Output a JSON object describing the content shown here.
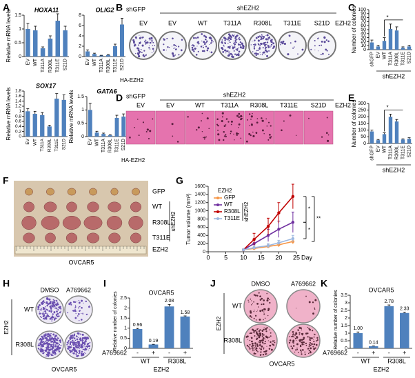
{
  "panel_letters": [
    "A",
    "B",
    "C",
    "D",
    "E",
    "F",
    "G",
    "H",
    "I",
    "J",
    "K"
  ],
  "chart_data": [
    {
      "type": "bar",
      "title": "HOXA11",
      "ylabel": "Relative mRNA levels",
      "categories": [
        "EV",
        "WT",
        "T311A",
        "R308L",
        "T311E",
        "S21D"
      ],
      "values": [
        1.0,
        0.95,
        0.3,
        0.65,
        1.3,
        0.95
      ],
      "errors": [
        0.2,
        0.15,
        0.05,
        0.1,
        0.25,
        0.15
      ],
      "ylim": [
        0,
        1.5
      ],
      "yticks": [
        0,
        0.5,
        1,
        1.5
      ],
      "color": "#4f81bd"
    },
    {
      "type": "bar",
      "title": "OLIG2",
      "xlabel": "HA-EZH2",
      "categories": [
        "EV",
        "WT",
        "T311A",
        "R308L",
        "T311E",
        "S21D"
      ],
      "values": [
        1.0,
        0.5,
        0.2,
        0.3,
        2.0,
        6.2
      ],
      "errors": [
        0.3,
        0.15,
        0.05,
        0.1,
        0.4,
        1.2
      ],
      "ylim": [
        0,
        8
      ],
      "yticks": [
        0,
        2,
        4,
        6,
        8
      ],
      "color": "#4f81bd"
    },
    {
      "type": "bar",
      "title": "SOX17",
      "ylabel": "Relative mRNA levels",
      "categories": [
        "EV",
        "WT",
        "T311A",
        "R308L",
        "T311E",
        "S21D"
      ],
      "values": [
        1.0,
        0.9,
        0.85,
        0.4,
        1.5,
        1.45
      ],
      "errors": [
        0.1,
        0.1,
        0.1,
        0.05,
        0.2,
        0.2
      ],
      "ylim": [
        0,
        1.8
      ],
      "yticks": [
        0,
        0.2,
        0.4,
        0.6,
        0.8,
        1,
        1.2,
        1.4,
        1.6,
        1.8
      ],
      "color": "#4f81bd"
    },
    {
      "type": "bar",
      "title": "GATA6",
      "ylabel": "Relative mRNA levels",
      "xlabel": "HA-EZH2",
      "categories": [
        "EV",
        "WT",
        "T311A",
        "R308L",
        "T311E",
        "S21D"
      ],
      "values": [
        1.0,
        0.15,
        0.1,
        0.05,
        0.7,
        0.75
      ],
      "errors": [
        0.25,
        0.05,
        0.03,
        0.02,
        0.1,
        0.1
      ],
      "ylim": [
        0,
        1.5
      ],
      "yticks": [
        0,
        0.5,
        1,
        1.5
      ],
      "color": "#4f81bd"
    },
    {
      "type": "bar",
      "ylabel": "Number of colonies",
      "categories": [
        "shGFP",
        "EV",
        "WT",
        "T311A",
        "R308L",
        "T311E",
        "S21D"
      ],
      "group_label": "shEZH2",
      "annotation": "*",
      "values": [
        18,
        8,
        22,
        52,
        48,
        5,
        8
      ],
      "errors": [
        6,
        3,
        8,
        12,
        9,
        2,
        3
      ],
      "ylim": [
        0,
        100
      ],
      "yticks": [
        0,
        10,
        20,
        30,
        40,
        50,
        60,
        70,
        80,
        90,
        100
      ],
      "color": "#4f81bd"
    },
    {
      "type": "bar",
      "ylabel": "Number of colonies",
      "categories": [
        "shGFP",
        "EV",
        "WT",
        "T311A",
        "R308L",
        "T311E",
        "S21D"
      ],
      "group_label": "shEZH2",
      "annotation": "*",
      "values": [
        90,
        25,
        70,
        200,
        165,
        30,
        35
      ],
      "errors": [
        10,
        5,
        10,
        20,
        15,
        5,
        8
      ],
      "ylim": [
        0,
        300
      ],
      "yticks": [
        0,
        50,
        100,
        150,
        200,
        250,
        300
      ],
      "color": "#4f81bd"
    },
    {
      "type": "line",
      "ylabel": "Tumor volume (mm³)",
      "xlabel": "Day",
      "legend_title": "EZH2",
      "group_label": "shEZH2",
      "annotations": [
        "*",
        "**",
        "*"
      ],
      "x": [
        10,
        13,
        17,
        20,
        24
      ],
      "xlim": [
        0,
        25
      ],
      "xticks": [
        0,
        5,
        10,
        15,
        20,
        25
      ],
      "ylim": [
        0,
        1600
      ],
      "yticks": [
        0,
        200,
        400,
        600,
        800,
        1000,
        1200,
        1400,
        1600
      ],
      "series": [
        {
          "name": "GFP",
          "color": "#f79646",
          "values": [
            50,
            80,
            130,
            170,
            250
          ],
          "errors": [
            10,
            30,
            40,
            50,
            60
          ]
        },
        {
          "name": "WT",
          "color": "#7030a0",
          "values": [
            50,
            200,
            400,
            550,
            720
          ],
          "errors": [
            10,
            100,
            150,
            200,
            250
          ]
        },
        {
          "name": "R308L",
          "color": "#c00000",
          "values": [
            50,
            300,
            620,
            950,
            1350
          ],
          "errors": [
            10,
            150,
            200,
            250,
            300
          ]
        },
        {
          "name": "T311E",
          "color": "#9db8e0",
          "values": [
            50,
            100,
            150,
            220,
            320
          ],
          "errors": [
            10,
            40,
            50,
            60,
            80
          ]
        }
      ]
    },
    {
      "type": "bar",
      "title": "OVCAR5",
      "ylabel": "Relative number of colonies",
      "treatment_label": "A769662",
      "categories": [
        "-",
        "+",
        "-",
        "+"
      ],
      "groups": [
        "WT",
        "R308L"
      ],
      "group_title": "EZH2",
      "data_labels": true,
      "values": [
        0.96,
        0.19,
        2.08,
        1.58
      ],
      "errors": [
        0.03,
        0.01,
        0.1,
        0.03
      ],
      "ylim": [
        0,
        2.5
      ],
      "yticks": [
        0,
        0.5,
        1,
        1.5,
        2,
        2.5
      ],
      "color": "#4f81bd"
    },
    {
      "type": "bar",
      "title": "OVCAR5",
      "ylabel": "Relative number of colonies",
      "treatment_label": "A769662",
      "categories": [
        "-",
        "+",
        "-",
        "+"
      ],
      "groups": [
        "WT",
        "R308L"
      ],
      "group_title": "EZH2",
      "values": [
        1,
        0.14,
        2.78,
        2.33
      ],
      "value_labels": [
        "1.00",
        "0.14",
        "2.78",
        "2.33"
      ],
      "errors": [
        0.08,
        0.02,
        0.08,
        0.05
      ],
      "ylim": [
        0,
        3.5
      ],
      "yticks": [
        0,
        0.5,
        1,
        1.5,
        2,
        2.5,
        3,
        3.5
      ],
      "color": "#4f81bd"
    }
  ],
  "images": {
    "B": {
      "group_left": "shGFP",
      "group": "shEZH2",
      "lanes": [
        "EV",
        "EV",
        "WT",
        "T311A",
        "R308L",
        "T311E",
        "S21D"
      ],
      "right": "EZH2"
    },
    "D": {
      "group_left": "shGFP",
      "group": "shEZH2",
      "lanes": [
        "EV",
        "EV",
        "WT",
        "T311A",
        "R308L",
        "T311E",
        "S21D"
      ],
      "right": "EZH2"
    },
    "F": {
      "rows": [
        "GFP",
        "WT",
        "R308L",
        "T311E"
      ],
      "group": "shEZH2",
      "bottom": "EZH2",
      "caption": "OVCAR5"
    },
    "H": {
      "columns": [
        "DMSO",
        "A769662"
      ],
      "rows": [
        "WT",
        "R308L"
      ],
      "side": "EZH2",
      "caption": "OVCAR5"
    },
    "J": {
      "columns": [
        "DMSO",
        "A769662"
      ],
      "rows": [
        "WT",
        "R308L"
      ],
      "side": "EZH2",
      "caption": "OVCAR5"
    }
  }
}
